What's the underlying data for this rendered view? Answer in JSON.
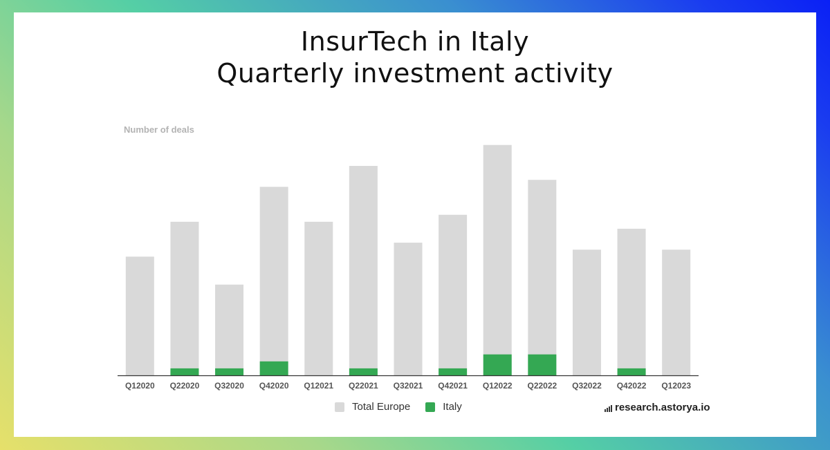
{
  "title_line1": "InsurTech in Italy",
  "title_line2": "Quarterly investment activity",
  "brand": "research.astorya.io",
  "colors": {
    "europe": "#d9d9d9",
    "italy": "#34a853",
    "axis": "#333333"
  },
  "chart_data": {
    "type": "bar",
    "ylabel": "Number of deals",
    "categories": [
      "Q12020",
      "Q22020",
      "Q32020",
      "Q42020",
      "Q12021",
      "Q22021",
      "Q32021",
      "Q42021",
      "Q12022",
      "Q22022",
      "Q32022",
      "Q42022",
      "Q12023"
    ],
    "series": [
      {
        "name": "Total Europe",
        "values": [
          17,
          22,
          13,
          27,
          22,
          30,
          19,
          23,
          33,
          28,
          18,
          21,
          18
        ]
      },
      {
        "name": "Italy",
        "values": [
          0,
          1,
          1,
          2,
          0,
          1,
          0,
          1,
          3,
          3,
          0,
          1,
          0
        ]
      }
    ],
    "overlay": true,
    "grid": false,
    "legend": "bottom"
  }
}
